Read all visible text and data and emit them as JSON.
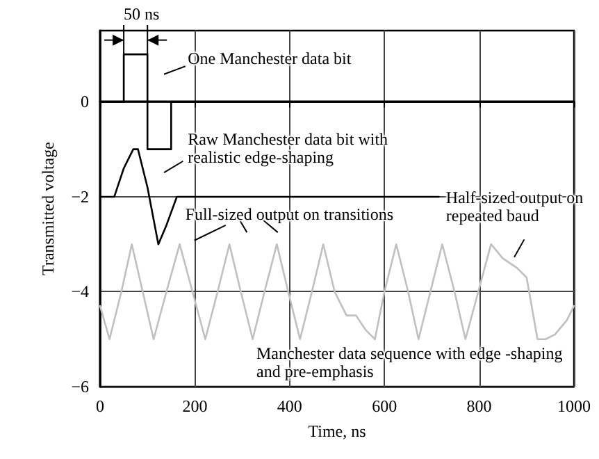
{
  "chart_data": {
    "type": "line",
    "xlabel": "Time, ns",
    "ylabel": "Transmitted voltage",
    "xlim": [
      0,
      1000
    ],
    "xticks": [
      0,
      200,
      400,
      600,
      800,
      1000
    ],
    "ylim": [
      -6,
      1.5
    ],
    "yticks": [
      0,
      -2,
      -4,
      -6
    ],
    "grid": true,
    "marker": "none",
    "line_style": "solid",
    "series": [
      {
        "color": "#000000",
        "x": [
          0,
          50,
          50,
          100,
          100,
          150,
          150,
          1000
        ],
        "values": [
          0,
          0,
          1,
          1,
          -1,
          -1,
          0,
          0
        ]
      },
      {
        "color": "#000000",
        "x": [
          0,
          30,
          50,
          70,
          80,
          100,
          123,
          140,
          162,
          715
        ],
        "values": [
          -2,
          -2,
          -1.4,
          -1,
          -1,
          -1.8,
          -3,
          -2.6,
          -2,
          -2
        ]
      },
      {
        "color": "#c0c0c0",
        "x": [
          0,
          20,
          45,
          67,
          90,
          113,
          140,
          168,
          195,
          222,
          248,
          273,
          297,
          322,
          347,
          373,
          397,
          422,
          447,
          471,
          495,
          520,
          540,
          560,
          580,
          600,
          625,
          650,
          672,
          697,
          722,
          748,
          771,
          798,
          825,
          850,
          880,
          900,
          923,
          940,
          960,
          985,
          1000
        ],
        "values": [
          -4.3,
          -5,
          -4,
          -3,
          -4,
          -5,
          -4,
          -3,
          -4,
          -5,
          -4,
          -3,
          -4,
          -5,
          -4,
          -3,
          -4,
          -5,
          -4,
          -3,
          -4,
          -4.5,
          -4.5,
          -4.8,
          -5,
          -4,
          -3,
          -4,
          -5,
          -4,
          -3,
          -4,
          -5,
          -4,
          -3,
          -3.3,
          -3.5,
          -3.7,
          -5,
          -5,
          -4.9,
          -4.6,
          -4.3
        ]
      }
    ],
    "annotations": [
      {
        "text": "50 ns",
        "x": 50,
        "y": 1
      },
      "One Manchester data bit",
      "Raw Manchester data bit with realistic edge-shaping",
      "Full-sized output on transitions",
      "Half-sized output on repeated baud",
      "Manchester data sequence with edge -shaping and pre-emphasis"
    ]
  }
}
